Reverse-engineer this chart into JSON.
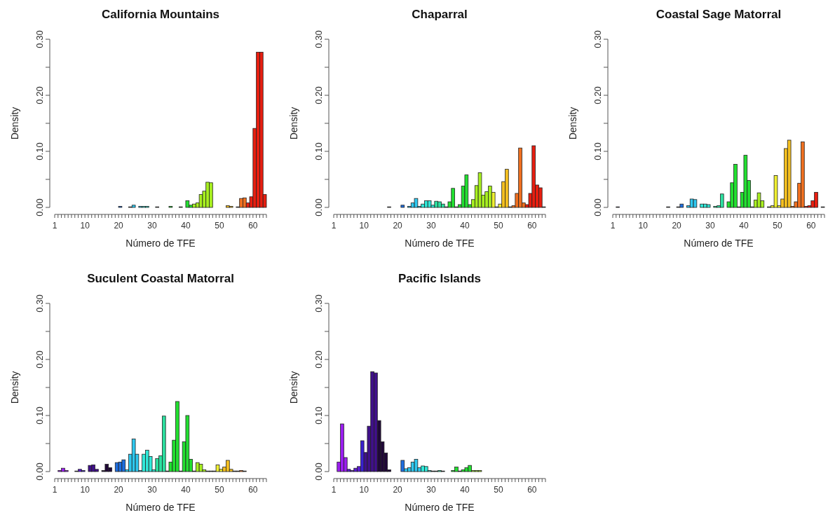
{
  "chart_data": [
    {
      "type": "histogram",
      "title": "California Mountains",
      "xlabel": "Número de TFE",
      "ylabel": "Density",
      "bins": [
        1,
        2,
        3,
        4,
        5,
        6,
        7,
        8,
        9,
        10,
        11,
        12,
        13,
        14,
        15,
        16,
        17,
        18,
        19,
        20,
        21,
        22,
        23,
        24,
        25,
        26,
        27,
        28,
        29,
        30,
        31,
        32,
        33,
        34,
        35,
        36,
        37,
        38,
        39,
        40,
        41,
        42,
        43,
        44,
        45,
        46,
        47,
        48,
        49,
        50,
        51,
        52,
        53,
        54,
        55,
        56,
        57,
        58,
        59,
        60,
        61,
        62,
        63,
        64
      ],
      "values": [
        0,
        0,
        0,
        0,
        0,
        0,
        0,
        0,
        0,
        0,
        0,
        0,
        0,
        0,
        0,
        0,
        0,
        0,
        0,
        0.002,
        0,
        0,
        0.001,
        0.004,
        0,
        0.002,
        0.002,
        0.002,
        0,
        0,
        0.001,
        0,
        0,
        0,
        0.002,
        0,
        0,
        0.001,
        0,
        0.012,
        0.004,
        0.006,
        0.008,
        0.023,
        0.029,
        0.045,
        0.044,
        0,
        0,
        0,
        0,
        0.003,
        0.002,
        0,
        0.001,
        0.016,
        0.017,
        0.008,
        0.019,
        0.141,
        0.277,
        0.277,
        0.023
      ],
      "colors": [
        "#9b1ef0",
        "#9b1ef0",
        "#9b1ef0",
        "#9b1ef0",
        "#5a1ad0",
        "#5a1ad0",
        "#5a1ad0",
        "#5a1ad0",
        "#3a20d0",
        "#40108a",
        "#40108a",
        "#40108a",
        "#40108a",
        "#200838",
        "#200838",
        "#200838",
        "#200838",
        "#1e6ee0",
        "#1e6ee0",
        "#1e6ee0",
        "#1e6ee0",
        "#2ec8f0",
        "#2ec8f0",
        "#2ec8f0",
        "#2ec8f0",
        "#2ec8f0",
        "#30e8d8",
        "#30e8d8",
        "#30e8d8",
        "#30e8d8",
        "#2ce0a0",
        "#2ce0a0",
        "#2ce0a0",
        "#2ce0a0",
        "#22e030",
        "#22e030",
        "#22e030",
        "#22e030",
        "#22e030",
        "#22e030",
        "#22e030",
        "#a8f020",
        "#a8f020",
        "#a8f020",
        "#a8f020",
        "#a8f020",
        "#a8f020",
        "#f0f030",
        "#f0f030",
        "#f0f030",
        "#f5c020",
        "#f5c020",
        "#f5c020",
        "#f07020",
        "#f07020",
        "#f07020",
        "#f07020",
        "#e81e10",
        "#e81e10",
        "#e81e10",
        "#e81e10",
        "#e81e10",
        "#e81e10"
      ],
      "xlim": [
        1,
        64
      ],
      "xticks": [
        1,
        {
          "value": 2,
          "label": null
        },
        {
          "value": 3,
          "label": null
        },
        {
          "value": 4,
          "label": null
        },
        {
          "value": 5,
          "label": null
        },
        {
          "value": 6,
          "label": null
        },
        {
          "value": 7,
          "label": null
        },
        {
          "value": 8,
          "label": null
        },
        {
          "value": 9,
          "label": null
        },
        10,
        {
          "value": 11,
          "label": null
        },
        {
          "value": 12,
          "label": null
        },
        {
          "value": 13,
          "label": null
        },
        {
          "value": 14,
          "label": null
        },
        {
          "value": 15,
          "label": null
        },
        {
          "value": 16,
          "label": null
        },
        {
          "value": 17,
          "label": null
        },
        {
          "value": 18,
          "label": null
        },
        {
          "value": 19,
          "label": null
        },
        20,
        {
          "value": 21,
          "label": null
        },
        {
          "value": 22,
          "label": null
        },
        {
          "value": 23,
          "label": null
        },
        {
          "value": 24,
          "label": null
        },
        {
          "value": 25,
          "label": null
        },
        {
          "value": 26,
          "label": null
        },
        {
          "value": 27,
          "label": null
        },
        {
          "value": 28,
          "label": null
        },
        {
          "value": 29,
          "label": null
        },
        30,
        {
          "value": 31,
          "label": null
        },
        {
          "value": 32,
          "label": null
        },
        {
          "value": 33,
          "label": null
        },
        {
          "value": 34,
          "label": null
        },
        {
          "value": 35,
          "label": null
        },
        {
          "value": 36,
          "label": null
        },
        {
          "value": 37,
          "label": null
        },
        {
          "value": 38,
          "label": null
        },
        {
          "value": 39,
          "label": null
        },
        40,
        {
          "value": 41,
          "label": null
        },
        {
          "value": 42,
          "label": null
        },
        {
          "value": 43,
          "label": null
        },
        {
          "value": 44,
          "label": null
        },
        {
          "value": 45,
          "label": null
        },
        {
          "value": 46,
          "label": null
        },
        {
          "value": 47,
          "label": null
        },
        {
          "value": 48,
          "label": null
        },
        {
          "value": 49,
          "label": null
        },
        50,
        {
          "value": 51,
          "label": null
        },
        {
          "value": 52,
          "label": null
        },
        {
          "value": 53,
          "label": null
        },
        {
          "value": 54,
          "label": null
        },
        {
          "value": 55,
          "label": null
        },
        {
          "value": 56,
          "label": null
        },
        {
          "value": 57,
          "label": null
        },
        {
          "value": 58,
          "label": null
        },
        {
          "value": 59,
          "label": null
        },
        60,
        {
          "value": 61,
          "label": null
        },
        {
          "value": 62,
          "label": null
        },
        {
          "value": 63,
          "label": null
        },
        {
          "value": 64,
          "label": null
        }
      ],
      "ylim": [
        0,
        0.3
      ],
      "yticks": [
        {
          "value": 0,
          "label": "0.00"
        },
        {
          "value": 0.05,
          "label": null
        },
        {
          "value": 0.1,
          "label": "0.10"
        },
        {
          "value": 0.15,
          "label": null
        },
        {
          "value": 0.2,
          "label": "0.20"
        },
        {
          "value": 0.25,
          "label": null
        },
        {
          "value": 0.3,
          "label": "0.30"
        }
      ]
    },
    {
      "type": "histogram",
      "title": "Chaparral",
      "xlabel": "Número de TFE",
      "ylabel": "Density",
      "bins": [
        1,
        2,
        3,
        4,
        5,
        6,
        7,
        8,
        9,
        10,
        11,
        12,
        13,
        14,
        15,
        16,
        17,
        18,
        19,
        20,
        21,
        22,
        23,
        24,
        25,
        26,
        27,
        28,
        29,
        30,
        31,
        32,
        33,
        34,
        35,
        36,
        37,
        38,
        39,
        40,
        41,
        42,
        43,
        44,
        45,
        46,
        47,
        48,
        49,
        50,
        51,
        52,
        53,
        54,
        55,
        56,
        57,
        58,
        59,
        60,
        61,
        62,
        63,
        64
      ],
      "values": [
        0,
        0,
        0,
        0,
        0,
        0,
        0,
        0,
        0,
        0,
        0,
        0,
        0,
        0,
        0,
        0,
        0.001,
        0,
        0,
        0,
        0.004,
        0,
        0.002,
        0.008,
        0.016,
        0.002,
        0.006,
        0.012,
        0.012,
        0.004,
        0.011,
        0.01,
        0.006,
        0.001,
        0.01,
        0.034,
        0.001,
        0.005,
        0.038,
        0.058,
        0.005,
        0.014,
        0.039,
        0.062,
        0.022,
        0.028,
        0.038,
        0.027,
        0.001,
        0.006,
        0.046,
        0.068,
        0.001,
        0.003,
        0.025,
        0.106,
        0.008,
        0.005,
        0.025,
        0.11,
        0.04,
        0.035,
        0.001
      ],
      "colors": [
        "#9b1ef0",
        "#9b1ef0",
        "#9b1ef0",
        "#9b1ef0",
        "#5a1ad0",
        "#5a1ad0",
        "#5a1ad0",
        "#5a1ad0",
        "#3a20d0",
        "#40108a",
        "#40108a",
        "#40108a",
        "#40108a",
        "#200838",
        "#200838",
        "#200838",
        "#200838",
        "#1e6ee0",
        "#1e6ee0",
        "#1e6ee0",
        "#1e6ee0",
        "#2ec8f0",
        "#2ec8f0",
        "#2ec8f0",
        "#2ec8f0",
        "#2ec8f0",
        "#30e8d8",
        "#30e8d8",
        "#30e8d8",
        "#30e8d8",
        "#2ce0a0",
        "#2ce0a0",
        "#2ce0a0",
        "#2ce0a0",
        "#22e030",
        "#22e030",
        "#22e030",
        "#22e030",
        "#22e030",
        "#22e030",
        "#22e030",
        "#a8f020",
        "#a8f020",
        "#a8f020",
        "#a8f020",
        "#a8f020",
        "#a8f020",
        "#f0f030",
        "#f0f030",
        "#f0f030",
        "#f5c020",
        "#f5c020",
        "#f5c020",
        "#f07020",
        "#f07020",
        "#f07020",
        "#f07020",
        "#e81e10",
        "#e81e10",
        "#e81e10",
        "#e81e10",
        "#e81e10",
        "#e81e10"
      ],
      "xlim": [
        1,
        64
      ],
      "xticks": [
        1,
        {
          "value": 2,
          "label": null
        },
        {
          "value": 3,
          "label": null
        },
        {
          "value": 4,
          "label": null
        },
        {
          "value": 5,
          "label": null
        },
        {
          "value": 6,
          "label": null
        },
        {
          "value": 7,
          "label": null
        },
        {
          "value": 8,
          "label": null
        },
        {
          "value": 9,
          "label": null
        },
        10,
        {
          "value": 11,
          "label": null
        },
        {
          "value": 12,
          "label": null
        },
        {
          "value": 13,
          "label": null
        },
        {
          "value": 14,
          "label": null
        },
        {
          "value": 15,
          "label": null
        },
        {
          "value": 16,
          "label": null
        },
        {
          "value": 17,
          "label": null
        },
        {
          "value": 18,
          "label": null
        },
        {
          "value": 19,
          "label": null
        },
        20,
        {
          "value": 21,
          "label": null
        },
        {
          "value": 22,
          "label": null
        },
        {
          "value": 23,
          "label": null
        },
        {
          "value": 24,
          "label": null
        },
        {
          "value": 25,
          "label": null
        },
        {
          "value": 26,
          "label": null
        },
        {
          "value": 27,
          "label": null
        },
        {
          "value": 28,
          "label": null
        },
        {
          "value": 29,
          "label": null
        },
        30,
        {
          "value": 31,
          "label": null
        },
        {
          "value": 32,
          "label": null
        },
        {
          "value": 33,
          "label": null
        },
        {
          "value": 34,
          "label": null
        },
        {
          "value": 35,
          "label": null
        },
        {
          "value": 36,
          "label": null
        },
        {
          "value": 37,
          "label": null
        },
        {
          "value": 38,
          "label": null
        },
        {
          "value": 39,
          "label": null
        },
        40,
        {
          "value": 41,
          "label": null
        },
        {
          "value": 42,
          "label": null
        },
        {
          "value": 43,
          "label": null
        },
        {
          "value": 44,
          "label": null
        },
        {
          "value": 45,
          "label": null
        },
        {
          "value": 46,
          "label": null
        },
        {
          "value": 47,
          "label": null
        },
        {
          "value": 48,
          "label": null
        },
        {
          "value": 49,
          "label": null
        },
        50,
        {
          "value": 51,
          "label": null
        },
        {
          "value": 52,
          "label": null
        },
        {
          "value": 53,
          "label": null
        },
        {
          "value": 54,
          "label": null
        },
        {
          "value": 55,
          "label": null
        },
        {
          "value": 56,
          "label": null
        },
        {
          "value": 57,
          "label": null
        },
        {
          "value": 58,
          "label": null
        },
        {
          "value": 59,
          "label": null
        },
        60,
        {
          "value": 61,
          "label": null
        },
        {
          "value": 62,
          "label": null
        },
        {
          "value": 63,
          "label": null
        },
        {
          "value": 64,
          "label": null
        }
      ],
      "ylim": [
        0,
        0.3
      ],
      "yticks": [
        {
          "value": 0,
          "label": "0.00"
        },
        {
          "value": 0.05,
          "label": null
        },
        {
          "value": 0.1,
          "label": "0.10"
        },
        {
          "value": 0.15,
          "label": null
        },
        {
          "value": 0.2,
          "label": "0.20"
        },
        {
          "value": 0.25,
          "label": null
        },
        {
          "value": 0.3,
          "label": "0.30"
        }
      ]
    },
    {
      "type": "histogram",
      "title": "Coastal Sage Matorral",
      "xlabel": "Número de TFE",
      "ylabel": "Density",
      "bins": [
        1,
        2,
        3,
        4,
        5,
        6,
        7,
        8,
        9,
        10,
        11,
        12,
        13,
        14,
        15,
        16,
        17,
        18,
        19,
        20,
        21,
        22,
        23,
        24,
        25,
        26,
        27,
        28,
        29,
        30,
        31,
        32,
        33,
        34,
        35,
        36,
        37,
        38,
        39,
        40,
        41,
        42,
        43,
        44,
        45,
        46,
        47,
        48,
        49,
        50,
        51,
        52,
        53,
        54,
        55,
        56,
        57,
        58,
        59,
        60,
        61,
        62,
        63,
        64
      ],
      "values": [
        0,
        0.001,
        0,
        0,
        0,
        0,
        0,
        0,
        0,
        0,
        0,
        0,
        0,
        0,
        0,
        0,
        0.001,
        0,
        0,
        0.001,
        0.006,
        0,
        0.003,
        0.015,
        0.014,
        0,
        0.006,
        0.006,
        0.005,
        0,
        0.002,
        0.003,
        0.024,
        0,
        0.01,
        0.044,
        0.077,
        0.001,
        0.027,
        0.093,
        0.048,
        0.001,
        0.013,
        0.026,
        0.012,
        0,
        0.001,
        0.003,
        0.057,
        0.003,
        0.015,
        0.105,
        0.12,
        0.002,
        0.01,
        0.043,
        0.117,
        0.002,
        0.003,
        0.012,
        0.027,
        0,
        0.001
      ],
      "colors": [
        "#9b1ef0",
        "#9b1ef0",
        "#9b1ef0",
        "#9b1ef0",
        "#5a1ad0",
        "#5a1ad0",
        "#5a1ad0",
        "#5a1ad0",
        "#3a20d0",
        "#40108a",
        "#40108a",
        "#40108a",
        "#40108a",
        "#200838",
        "#200838",
        "#200838",
        "#200838",
        "#1e6ee0",
        "#1e6ee0",
        "#1e6ee0",
        "#1e6ee0",
        "#2ec8f0",
        "#2ec8f0",
        "#2ec8f0",
        "#2ec8f0",
        "#2ec8f0",
        "#30e8d8",
        "#30e8d8",
        "#30e8d8",
        "#30e8d8",
        "#2ce0a0",
        "#2ce0a0",
        "#2ce0a0",
        "#2ce0a0",
        "#22e030",
        "#22e030",
        "#22e030",
        "#22e030",
        "#22e030",
        "#22e030",
        "#22e030",
        "#a8f020",
        "#a8f020",
        "#a8f020",
        "#a8f020",
        "#a8f020",
        "#a8f020",
        "#f0f030",
        "#f0f030",
        "#f0f030",
        "#f5c020",
        "#f5c020",
        "#f5c020",
        "#f07020",
        "#f07020",
        "#f07020",
        "#f07020",
        "#e81e10",
        "#e81e10",
        "#e81e10",
        "#e81e10",
        "#e81e10",
        "#e81e10"
      ],
      "xlim": [
        1,
        64
      ],
      "xticks": [
        1,
        {
          "value": 2,
          "label": null
        },
        {
          "value": 3,
          "label": null
        },
        {
          "value": 4,
          "label": null
        },
        {
          "value": 5,
          "label": null
        },
        {
          "value": 6,
          "label": null
        },
        {
          "value": 7,
          "label": null
        },
        {
          "value": 8,
          "label": null
        },
        {
          "value": 9,
          "label": null
        },
        10,
        {
          "value": 11,
          "label": null
        },
        {
          "value": 12,
          "label": null
        },
        {
          "value": 13,
          "label": null
        },
        {
          "value": 14,
          "label": null
        },
        {
          "value": 15,
          "label": null
        },
        {
          "value": 16,
          "label": null
        },
        {
          "value": 17,
          "label": null
        },
        {
          "value": 18,
          "label": null
        },
        {
          "value": 19,
          "label": null
        },
        20,
        {
          "value": 21,
          "label": null
        },
        {
          "value": 22,
          "label": null
        },
        {
          "value": 23,
          "label": null
        },
        {
          "value": 24,
          "label": null
        },
        {
          "value": 25,
          "label": null
        },
        {
          "value": 26,
          "label": null
        },
        {
          "value": 27,
          "label": null
        },
        {
          "value": 28,
          "label": null
        },
        {
          "value": 29,
          "label": null
        },
        30,
        {
          "value": 31,
          "label": null
        },
        {
          "value": 32,
          "label": null
        },
        {
          "value": 33,
          "label": null
        },
        {
          "value": 34,
          "label": null
        },
        {
          "value": 35,
          "label": null
        },
        {
          "value": 36,
          "label": null
        },
        {
          "value": 37,
          "label": null
        },
        {
          "value": 38,
          "label": null
        },
        {
          "value": 39,
          "label": null
        },
        40,
        {
          "value": 41,
          "label": null
        },
        {
          "value": 42,
          "label": null
        },
        {
          "value": 43,
          "label": null
        },
        {
          "value": 44,
          "label": null
        },
        {
          "value": 45,
          "label": null
        },
        {
          "value": 46,
          "label": null
        },
        {
          "value": 47,
          "label": null
        },
        {
          "value": 48,
          "label": null
        },
        {
          "value": 49,
          "label": null
        },
        50,
        {
          "value": 51,
          "label": null
        },
        {
          "value": 52,
          "label": null
        },
        {
          "value": 53,
          "label": null
        },
        {
          "value": 54,
          "label": null
        },
        {
          "value": 55,
          "label": null
        },
        {
          "value": 56,
          "label": null
        },
        {
          "value": 57,
          "label": null
        },
        {
          "value": 58,
          "label": null
        },
        {
          "value": 59,
          "label": null
        },
        60,
        {
          "value": 61,
          "label": null
        },
        {
          "value": 62,
          "label": null
        },
        {
          "value": 63,
          "label": null
        },
        {
          "value": 64,
          "label": null
        }
      ],
      "ylim": [
        0,
        0.3
      ],
      "yticks": [
        {
          "value": 0,
          "label": "0.00"
        },
        {
          "value": 0.05,
          "label": null
        },
        {
          "value": 0.1,
          "label": "0.10"
        },
        {
          "value": 0.15,
          "label": null
        },
        {
          "value": 0.2,
          "label": "0.20"
        },
        {
          "value": 0.25,
          "label": null
        },
        {
          "value": 0.3,
          "label": "0.30"
        }
      ]
    },
    {
      "type": "histogram",
      "title": "Suculent Coastal Matorral",
      "xlabel": "Número de TFE",
      "ylabel": "Density",
      "bins": [
        1,
        2,
        3,
        4,
        5,
        6,
        7,
        8,
        9,
        10,
        11,
        12,
        13,
        14,
        15,
        16,
        17,
        18,
        19,
        20,
        21,
        22,
        23,
        24,
        25,
        26,
        27,
        28,
        29,
        30,
        31,
        32,
        33,
        34,
        35,
        36,
        37,
        38,
        39,
        40,
        41,
        42,
        43,
        44,
        45,
        46,
        47,
        48,
        49,
        50,
        51,
        52,
        53,
        54,
        55,
        56,
        57,
        58,
        59,
        60,
        61,
        62,
        63,
        64
      ],
      "values": [
        0,
        0.002,
        0.006,
        0.002,
        0,
        0,
        0.001,
        0.004,
        0.002,
        0,
        0.011,
        0.012,
        0.004,
        0,
        0.002,
        0.013,
        0.007,
        0,
        0.016,
        0.017,
        0.021,
        0.003,
        0.031,
        0.058,
        0.031,
        0.002,
        0.031,
        0.038,
        0.027,
        0.003,
        0.023,
        0.028,
        0.099,
        0.001,
        0.017,
        0.056,
        0.125,
        0.001,
        0.053,
        0.1,
        0.022,
        0.001,
        0.016,
        0.013,
        0.003,
        0.001,
        0.001,
        0.001,
        0.012,
        0.004,
        0.008,
        0.02,
        0.004,
        0.001,
        0.001,
        0.002,
        0.001,
        0,
        0,
        0,
        0,
        0,
        0
      ],
      "colors": [
        "#9b1ef0",
        "#9b1ef0",
        "#9b1ef0",
        "#9b1ef0",
        "#5a1ad0",
        "#5a1ad0",
        "#5a1ad0",
        "#5a1ad0",
        "#3a20d0",
        "#40108a",
        "#40108a",
        "#40108a",
        "#40108a",
        "#200838",
        "#200838",
        "#200838",
        "#200838",
        "#1e6ee0",
        "#1e6ee0",
        "#1e6ee0",
        "#1e6ee0",
        "#2ec8f0",
        "#2ec8f0",
        "#2ec8f0",
        "#2ec8f0",
        "#2ec8f0",
        "#30e8d8",
        "#30e8d8",
        "#30e8d8",
        "#30e8d8",
        "#2ce0a0",
        "#2ce0a0",
        "#2ce0a0",
        "#2ce0a0",
        "#22e030",
        "#22e030",
        "#22e030",
        "#22e030",
        "#22e030",
        "#22e030",
        "#22e030",
        "#a8f020",
        "#a8f020",
        "#a8f020",
        "#a8f020",
        "#a8f020",
        "#a8f020",
        "#f0f030",
        "#f0f030",
        "#f0f030",
        "#f5c020",
        "#f5c020",
        "#f5c020",
        "#f07020",
        "#f07020",
        "#f07020",
        "#f07020",
        "#e81e10",
        "#e81e10",
        "#e81e10",
        "#e81e10",
        "#e81e10",
        "#e81e10"
      ],
      "xlim": [
        1,
        64
      ],
      "xticks": [
        1,
        {
          "value": 2,
          "label": null
        },
        {
          "value": 3,
          "label": null
        },
        {
          "value": 4,
          "label": null
        },
        {
          "value": 5,
          "label": null
        },
        {
          "value": 6,
          "label": null
        },
        {
          "value": 7,
          "label": null
        },
        {
          "value": 8,
          "label": null
        },
        {
          "value": 9,
          "label": null
        },
        10,
        {
          "value": 11,
          "label": null
        },
        {
          "value": 12,
          "label": null
        },
        {
          "value": 13,
          "label": null
        },
        {
          "value": 14,
          "label": null
        },
        {
          "value": 15,
          "label": null
        },
        {
          "value": 16,
          "label": null
        },
        {
          "value": 17,
          "label": null
        },
        {
          "value": 18,
          "label": null
        },
        {
          "value": 19,
          "label": null
        },
        20,
        {
          "value": 21,
          "label": null
        },
        {
          "value": 22,
          "label": null
        },
        {
          "value": 23,
          "label": null
        },
        {
          "value": 24,
          "label": null
        },
        {
          "value": 25,
          "label": null
        },
        {
          "value": 26,
          "label": null
        },
        {
          "value": 27,
          "label": null
        },
        {
          "value": 28,
          "label": null
        },
        {
          "value": 29,
          "label": null
        },
        30,
        {
          "value": 31,
          "label": null
        },
        {
          "value": 32,
          "label": null
        },
        {
          "value": 33,
          "label": null
        },
        {
          "value": 34,
          "label": null
        },
        {
          "value": 35,
          "label": null
        },
        {
          "value": 36,
          "label": null
        },
        {
          "value": 37,
          "label": null
        },
        {
          "value": 38,
          "label": null
        },
        {
          "value": 39,
          "label": null
        },
        40,
        {
          "value": 41,
          "label": null
        },
        {
          "value": 42,
          "label": null
        },
        {
          "value": 43,
          "label": null
        },
        {
          "value": 44,
          "label": null
        },
        {
          "value": 45,
          "label": null
        },
        {
          "value": 46,
          "label": null
        },
        {
          "value": 47,
          "label": null
        },
        {
          "value": 48,
          "label": null
        },
        {
          "value": 49,
          "label": null
        },
        50,
        {
          "value": 51,
          "label": null
        },
        {
          "value": 52,
          "label": null
        },
        {
          "value": 53,
          "label": null
        },
        {
          "value": 54,
          "label": null
        },
        {
          "value": 55,
          "label": null
        },
        {
          "value": 56,
          "label": null
        },
        {
          "value": 57,
          "label": null
        },
        {
          "value": 58,
          "label": null
        },
        {
          "value": 59,
          "label": null
        },
        60,
        {
          "value": 61,
          "label": null
        },
        {
          "value": 62,
          "label": null
        },
        {
          "value": 63,
          "label": null
        },
        {
          "value": 64,
          "label": null
        }
      ],
      "ylim": [
        0,
        0.3
      ],
      "yticks": [
        {
          "value": 0,
          "label": "0.00"
        },
        {
          "value": 0.05,
          "label": null
        },
        {
          "value": 0.1,
          "label": "0.10"
        },
        {
          "value": 0.15,
          "label": null
        },
        {
          "value": 0.2,
          "label": "0.20"
        },
        {
          "value": 0.25,
          "label": null
        },
        {
          "value": 0.3,
          "label": "0.30"
        }
      ]
    },
    {
      "type": "histogram",
      "title": "Pacific Islands",
      "xlabel": "Número de TFE",
      "ylabel": "Density",
      "bins": [
        1,
        2,
        3,
        4,
        5,
        6,
        7,
        8,
        9,
        10,
        11,
        12,
        13,
        14,
        15,
        16,
        17,
        18,
        19,
        20,
        21,
        22,
        23,
        24,
        25,
        26,
        27,
        28,
        29,
        30,
        31,
        32,
        33,
        34,
        35,
        36,
        37,
        38,
        39,
        40,
        41,
        42,
        43,
        44,
        45,
        46,
        47,
        48,
        49,
        50,
        51,
        52,
        53,
        54,
        55,
        56,
        57,
        58,
        59,
        60,
        61,
        62,
        63,
        64
      ],
      "values": [
        0,
        0.017,
        0.085,
        0.025,
        0.004,
        0.002,
        0.006,
        0.009,
        0.055,
        0.034,
        0.081,
        0.178,
        0.176,
        0.091,
        0.053,
        0.033,
        0.003,
        0,
        0,
        0,
        0.02,
        0.005,
        0.007,
        0.017,
        0.022,
        0.007,
        0.01,
        0.009,
        0.002,
        0.001,
        0.001,
        0.002,
        0.001,
        0,
        0,
        0.002,
        0.008,
        0.001,
        0.003,
        0.007,
        0.011,
        0.002,
        0.002,
        0.002,
        0,
        0,
        0,
        0,
        0,
        0,
        0,
        0,
        0,
        0,
        0,
        0,
        0,
        0,
        0,
        0,
        0,
        0,
        0
      ],
      "colors": [
        "#9b1ef0",
        "#9b1ef0",
        "#9b1ef0",
        "#9b1ef0",
        "#5a1ad0",
        "#5a1ad0",
        "#5a1ad0",
        "#5a1ad0",
        "#3a20d0",
        "#40108a",
        "#40108a",
        "#40108a",
        "#40108a",
        "#200838",
        "#200838",
        "#200838",
        "#200838",
        "#1e6ee0",
        "#1e6ee0",
        "#1e6ee0",
        "#1e6ee0",
        "#2ec8f0",
        "#2ec8f0",
        "#2ec8f0",
        "#2ec8f0",
        "#2ec8f0",
        "#30e8d8",
        "#30e8d8",
        "#30e8d8",
        "#30e8d8",
        "#2ce0a0",
        "#2ce0a0",
        "#2ce0a0",
        "#2ce0a0",
        "#22e030",
        "#22e030",
        "#22e030",
        "#22e030",
        "#22e030",
        "#22e030",
        "#22e030",
        "#a8f020",
        "#a8f020",
        "#a8f020",
        "#a8f020",
        "#a8f020",
        "#a8f020",
        "#f0f030",
        "#f0f030",
        "#f0f030",
        "#f5c020",
        "#f5c020",
        "#f5c020",
        "#f07020",
        "#f07020",
        "#f07020",
        "#f07020",
        "#e81e10",
        "#e81e10",
        "#e81e10",
        "#e81e10",
        "#e81e10",
        "#e81e10"
      ],
      "xlim": [
        1,
        64
      ],
      "xticks": [
        1,
        {
          "value": 2,
          "label": null
        },
        {
          "value": 3,
          "label": null
        },
        {
          "value": 4,
          "label": null
        },
        {
          "value": 5,
          "label": null
        },
        {
          "value": 6,
          "label": null
        },
        {
          "value": 7,
          "label": null
        },
        {
          "value": 8,
          "label": null
        },
        {
          "value": 9,
          "label": null
        },
        10,
        {
          "value": 11,
          "label": null
        },
        {
          "value": 12,
          "label": null
        },
        {
          "value": 13,
          "label": null
        },
        {
          "value": 14,
          "label": null
        },
        {
          "value": 15,
          "label": null
        },
        {
          "value": 16,
          "label": null
        },
        {
          "value": 17,
          "label": null
        },
        {
          "value": 18,
          "label": null
        },
        {
          "value": 19,
          "label": null
        },
        20,
        {
          "value": 21,
          "label": null
        },
        {
          "value": 22,
          "label": null
        },
        {
          "value": 23,
          "label": null
        },
        {
          "value": 24,
          "label": null
        },
        {
          "value": 25,
          "label": null
        },
        {
          "value": 26,
          "label": null
        },
        {
          "value": 27,
          "label": null
        },
        {
          "value": 28,
          "label": null
        },
        {
          "value": 29,
          "label": null
        },
        30,
        {
          "value": 31,
          "label": null
        },
        {
          "value": 32,
          "label": null
        },
        {
          "value": 33,
          "label": null
        },
        {
          "value": 34,
          "label": null
        },
        {
          "value": 35,
          "label": null
        },
        {
          "value": 36,
          "label": null
        },
        {
          "value": 37,
          "label": null
        },
        {
          "value": 38,
          "label": null
        },
        {
          "value": 39,
          "label": null
        },
        40,
        {
          "value": 41,
          "label": null
        },
        {
          "value": 42,
          "label": null
        },
        {
          "value": 43,
          "label": null
        },
        {
          "value": 44,
          "label": null
        },
        {
          "value": 45,
          "label": null
        },
        {
          "value": 46,
          "label": null
        },
        {
          "value": 47,
          "label": null
        },
        {
          "value": 48,
          "label": null
        },
        {
          "value": 49,
          "label": null
        },
        50,
        {
          "value": 51,
          "label": null
        },
        {
          "value": 52,
          "label": null
        },
        {
          "value": 53,
          "label": null
        },
        {
          "value": 54,
          "label": null
        },
        {
          "value": 55,
          "label": null
        },
        {
          "value": 56,
          "label": null
        },
        {
          "value": 57,
          "label": null
        },
        {
          "value": 58,
          "label": null
        },
        {
          "value": 59,
          "label": null
        },
        60,
        {
          "value": 61,
          "label": null
        },
        {
          "value": 62,
          "label": null
        },
        {
          "value": 63,
          "label": null
        },
        {
          "value": 64,
          "label": null
        }
      ],
      "ylim": [
        0,
        0.3
      ],
      "yticks": [
        {
          "value": 0,
          "label": "0.00"
        },
        {
          "value": 0.05,
          "label": null
        },
        {
          "value": 0.1,
          "label": "0.10"
        },
        {
          "value": 0.15,
          "label": null
        },
        {
          "value": 0.2,
          "label": "0.20"
        },
        {
          "value": 0.25,
          "label": null
        },
        {
          "value": 0.3,
          "label": "0.30"
        }
      ]
    }
  ]
}
